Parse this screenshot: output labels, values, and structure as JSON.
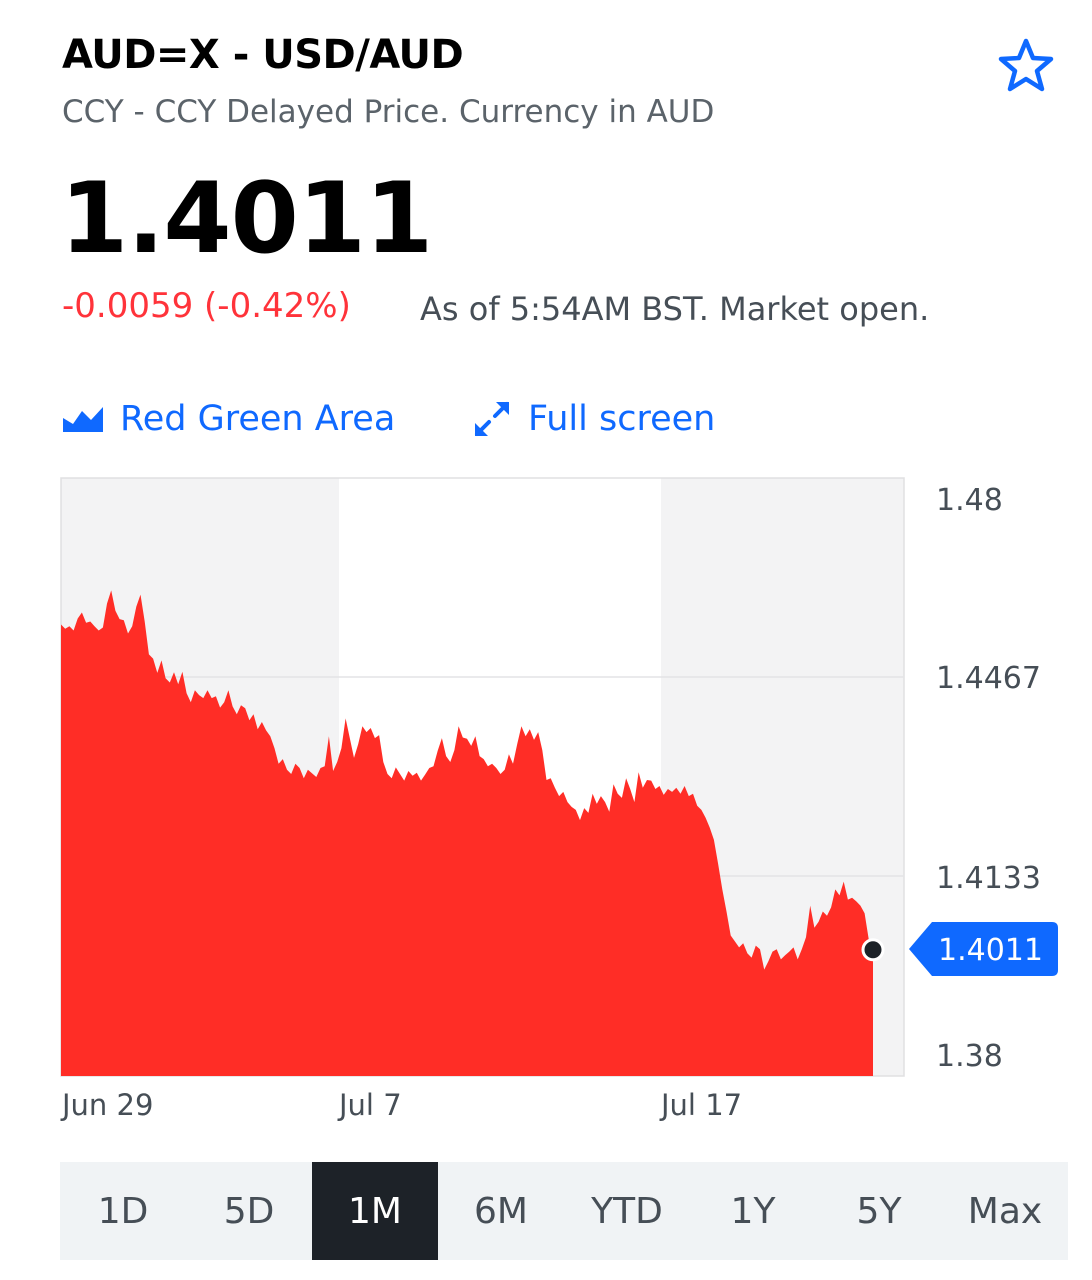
{
  "header": {
    "title": "AUD=X - USD/AUD",
    "subtitle": "CCY - CCY Delayed Price. Currency in AUD",
    "price": "1.4011",
    "change": "-0.0059 (-0.42%)",
    "as_of": "As of 5:54AM BST. Market open.",
    "watchlist_icon": "star-outline-icon"
  },
  "toolbar": {
    "chart_type_label": "Red Green Area",
    "chart_type_icon": "area-chart-icon",
    "fullscreen_label": "Full screen",
    "fullscreen_icon": "expand-arrows-icon"
  },
  "ranges": [
    {
      "label": "1D",
      "active": false
    },
    {
      "label": "5D",
      "active": false
    },
    {
      "label": "1M",
      "active": true
    },
    {
      "label": "6M",
      "active": false
    },
    {
      "label": "YTD",
      "active": false
    },
    {
      "label": "1Y",
      "active": false
    },
    {
      "label": "5Y",
      "active": false
    },
    {
      "label": "Max",
      "active": false
    }
  ],
  "colors": {
    "accent": "#0f69ff",
    "negative": "#ff333a",
    "area_fill": "#ff2d26",
    "band_fill": "#f3f3f4",
    "active_range_bg": "#1d2228"
  },
  "chart_data": {
    "type": "area",
    "ylim": [
      1.38,
      1.48
    ],
    "y_ticks": [
      "1.48",
      "1.4467",
      "1.4133",
      "1.38"
    ],
    "x_labels": [
      "Jun 29",
      "Jul 7",
      "Jul 17"
    ],
    "last_value": 1.4011,
    "last_label": "1.4011",
    "series": [
      {
        "values": [
          1.4555,
          1.4548,
          1.4552,
          1.4545,
          1.4565,
          1.4575,
          1.4558,
          1.456,
          1.4552,
          1.4545,
          1.455,
          1.459,
          1.4612,
          1.4578,
          1.4564,
          1.4562,
          1.454,
          1.4552,
          1.4585,
          1.4605,
          1.456,
          1.4505,
          1.4498,
          1.4474,
          1.4495,
          1.4465,
          1.4458,
          1.4475,
          1.4455,
          1.4476,
          1.444,
          1.4425,
          1.4445,
          1.4437,
          1.4432,
          1.4445,
          1.4432,
          1.4435,
          1.4416,
          1.4425,
          1.4445,
          1.4418,
          1.4405,
          1.442,
          1.4415,
          1.4395,
          1.4405,
          1.438,
          1.4392,
          1.4378,
          1.4368,
          1.4348,
          1.4322,
          1.433,
          1.4312,
          1.4305,
          1.4322,
          1.4315,
          1.4298,
          1.4312,
          1.4306,
          1.43,
          1.4315,
          1.4318,
          1.4368,
          1.431,
          1.4325,
          1.4348,
          1.4398,
          1.4365,
          1.4332,
          1.4355,
          1.4385,
          1.4375,
          1.4382,
          1.4365,
          1.437,
          1.4325,
          1.4305,
          1.4298,
          1.4316,
          1.4305,
          1.4294,
          1.431,
          1.4302,
          1.4307,
          1.4294,
          1.4304,
          1.4315,
          1.4318,
          1.4344,
          1.4365,
          1.4335,
          1.4325,
          1.4345,
          1.4385,
          1.4366,
          1.4364,
          1.4352,
          1.4368,
          1.4335,
          1.433,
          1.4318,
          1.4322,
          1.4315,
          1.4305,
          1.4312,
          1.4338,
          1.4322,
          1.4355,
          1.4385,
          1.4368,
          1.438,
          1.4362,
          1.4375,
          1.4345,
          1.4295,
          1.4298,
          1.4282,
          1.4268,
          1.4275,
          1.4258,
          1.425,
          1.4245,
          1.4228,
          1.4248,
          1.424,
          1.4272,
          1.4255,
          1.4268,
          1.4258,
          1.4242,
          1.4288,
          1.4272,
          1.4265,
          1.4298,
          1.428,
          1.4258,
          1.4308,
          1.4282,
          1.4295,
          1.4294,
          1.428,
          1.4285,
          1.427,
          1.428,
          1.4275,
          1.4282,
          1.4272,
          1.4285,
          1.4268,
          1.4272,
          1.4252,
          1.4245,
          1.4232,
          1.4215,
          1.4195,
          1.4155,
          1.4112,
          1.4075,
          1.4035,
          1.4025,
          1.4015,
          1.4022,
          1.4005,
          1.3998,
          1.4018,
          1.4012,
          1.3978,
          1.3992,
          1.4008,
          1.4012,
          1.3995,
          1.4002,
          1.4008,
          1.4015,
          1.3995,
          1.4012,
          1.4032,
          1.4085,
          1.4048,
          1.4058,
          1.4075,
          1.4068,
          1.4082,
          1.4112,
          1.4102,
          1.4125,
          1.4095,
          1.4098,
          1.4092,
          1.4085,
          1.4072,
          1.4028,
          1.4011
        ]
      }
    ]
  }
}
